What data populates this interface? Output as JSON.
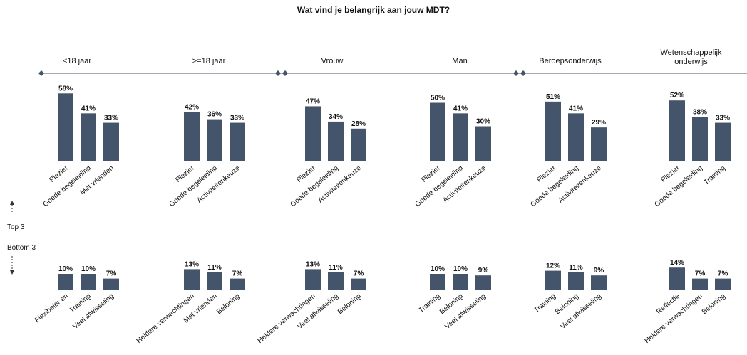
{
  "title": "Wat vind je belangrijk aan jouw MDT?",
  "side_labels": {
    "top": "Top 3",
    "bottom": "Bottom 3"
  },
  "chart_data": {
    "type": "bar",
    "title": "Wat vind je belangrijk aan jouw MDT?",
    "ylim": [
      0,
      60
    ],
    "bar_color": "#44546a",
    "groups": [
      {
        "name": "<18 jaar",
        "top3": [
          {
            "label": "Plezier",
            "value": 58,
            "value_label": "58%"
          },
          {
            "label": "Goede begeleiding",
            "value": 41,
            "value_label": "41%"
          },
          {
            "label": "Met vrienden",
            "value": 33,
            "value_label": "33%"
          }
        ],
        "bottom3": [
          {
            "label": "Flexibeler en",
            "value": 10,
            "value_label": "10%"
          },
          {
            "label": "Training",
            "value": 10,
            "value_label": "10%"
          },
          {
            "label": "Veel afwisseling",
            "value": 7,
            "value_label": "7%"
          }
        ]
      },
      {
        "name": ">=18 jaar",
        "top3": [
          {
            "label": "Plezier",
            "value": 42,
            "value_label": "42%"
          },
          {
            "label": "Goede begeleiding",
            "value": 36,
            "value_label": "36%"
          },
          {
            "label": "Activiteitenkeuze",
            "value": 33,
            "value_label": "33%"
          }
        ],
        "bottom3": [
          {
            "label": "Heldere verwachtingen",
            "value": 13,
            "value_label": "13%"
          },
          {
            "label": "Met vrienden",
            "value": 11,
            "value_label": "11%"
          },
          {
            "label": "Beloning",
            "value": 7,
            "value_label": "7%"
          }
        ]
      },
      {
        "name": "Vrouw",
        "top3": [
          {
            "label": "Plezier",
            "value": 47,
            "value_label": "47%"
          },
          {
            "label": "Goede begeleiding",
            "value": 34,
            "value_label": "34%"
          },
          {
            "label": "Activiteitenkeuze",
            "value": 28,
            "value_label": "28%"
          }
        ],
        "bottom3": [
          {
            "label": "Heldere verwachtingen",
            "value": 13,
            "value_label": "13%"
          },
          {
            "label": "Veel afwisseling",
            "value": 11,
            "value_label": "11%"
          },
          {
            "label": "Beloning",
            "value": 7,
            "value_label": "7%"
          }
        ]
      },
      {
        "name": "Man",
        "top3": [
          {
            "label": "Plezier",
            "value": 50,
            "value_label": "50%"
          },
          {
            "label": "Goede begeleiding",
            "value": 41,
            "value_label": "41%"
          },
          {
            "label": "Activiteitenkeuze",
            "value": 30,
            "value_label": "30%"
          }
        ],
        "bottom3": [
          {
            "label": "Training",
            "value": 10,
            "value_label": "10%"
          },
          {
            "label": "Beloning",
            "value": 10,
            "value_label": "10%"
          },
          {
            "label": "Veel afwisseling",
            "value": 9,
            "value_label": "9%"
          }
        ]
      },
      {
        "name": "Beroepsonderwijs",
        "top3": [
          {
            "label": "Plezier",
            "value": 51,
            "value_label": "51%"
          },
          {
            "label": "Goede begeleiding",
            "value": 41,
            "value_label": "41%"
          },
          {
            "label": "Activiteitenkeuze",
            "value": 29,
            "value_label": "29%"
          }
        ],
        "bottom3": [
          {
            "label": "Training",
            "value": 12,
            "value_label": "12%"
          },
          {
            "label": "Beloning",
            "value": 11,
            "value_label": "11%"
          },
          {
            "label": "Veel afwisseling",
            "value": 9,
            "value_label": "9%"
          }
        ]
      },
      {
        "name": "Wetenschappelijk onderwijs",
        "top3": [
          {
            "label": "Plezier",
            "value": 52,
            "value_label": "52%"
          },
          {
            "label": "Goede begeleiding",
            "value": 38,
            "value_label": "38%"
          },
          {
            "label": "Training",
            "value": 33,
            "value_label": "33%"
          }
        ],
        "bottom3": [
          {
            "label": "Reflectie",
            "value": 14,
            "value_label": "14%"
          },
          {
            "label": "Heldere verwachtingen",
            "value": 7,
            "value_label": "7%"
          },
          {
            "label": "Beloning",
            "value": 7,
            "value_label": "7%"
          }
        ]
      }
    ]
  }
}
